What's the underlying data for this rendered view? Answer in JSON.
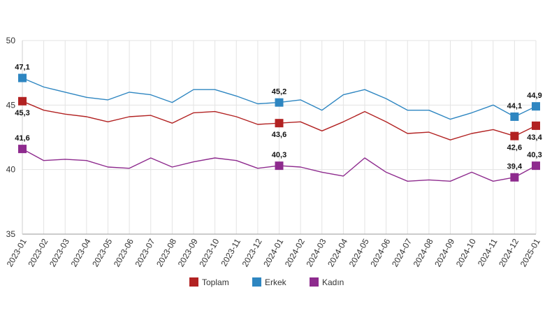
{
  "chart_data": {
    "type": "line",
    "title": "",
    "xlabel": "",
    "ylabel": "",
    "ylim": [
      35,
      50
    ],
    "yticks": [
      35,
      40,
      45,
      50
    ],
    "grid": true,
    "legend_position": "bottom",
    "categories": [
      "2023-01",
      "2023-02",
      "2023-03",
      "2023-04",
      "2023-05",
      "2023-06",
      "2023-07",
      "2023-08",
      "2023-09",
      "2023-10",
      "2023-11",
      "2023-12",
      "2024-01",
      "2024-02",
      "2024-03",
      "2024-04",
      "2024-05",
      "2024-06",
      "2024-07",
      "2024-08",
      "2024-09",
      "2024-10",
      "2024-11",
      "2024-12",
      "2025-01"
    ],
    "series": [
      {
        "name": "Toplam",
        "color": "#b22222",
        "values": [
          45.3,
          44.6,
          44.3,
          44.1,
          43.7,
          44.1,
          44.2,
          43.6,
          44.4,
          44.5,
          44.1,
          43.5,
          43.6,
          43.7,
          43.0,
          43.7,
          44.5,
          43.7,
          42.8,
          42.9,
          42.3,
          42.8,
          43.1,
          42.6,
          43.4
        ],
        "labels": [
          {
            "index": 0,
            "text": "45,3"
          },
          {
            "index": 12,
            "text": "43,6"
          },
          {
            "index": 23,
            "text": "42,6"
          },
          {
            "index": 24,
            "text": "43,4"
          }
        ]
      },
      {
        "name": "Erkek",
        "color": "#2e86c1",
        "values": [
          47.1,
          46.4,
          46.0,
          45.6,
          45.4,
          46.0,
          45.8,
          45.2,
          46.2,
          46.2,
          45.7,
          45.1,
          45.2,
          45.4,
          44.6,
          45.8,
          46.2,
          45.5,
          44.6,
          44.6,
          43.9,
          44.4,
          45.0,
          44.1,
          44.9
        ],
        "labels": [
          {
            "index": 0,
            "text": "47,1"
          },
          {
            "index": 12,
            "text": "45,2"
          },
          {
            "index": 23,
            "text": "44,1"
          },
          {
            "index": 24,
            "text": "44,9"
          }
        ]
      },
      {
        "name": "Kadın",
        "color": "#8e2b8e",
        "values": [
          41.6,
          40.7,
          40.8,
          40.7,
          40.2,
          40.1,
          40.9,
          40.2,
          40.6,
          40.9,
          40.7,
          40.1,
          40.3,
          40.2,
          39.8,
          39.5,
          40.9,
          39.8,
          39.1,
          39.2,
          39.1,
          39.8,
          39.1,
          39.4,
          40.3
        ],
        "labels": [
          {
            "index": 0,
            "text": "41,6"
          },
          {
            "index": 12,
            "text": "40,3"
          },
          {
            "index": 23,
            "text": "39,4"
          },
          {
            "index": 24,
            "text": "40,3"
          }
        ]
      }
    ]
  }
}
